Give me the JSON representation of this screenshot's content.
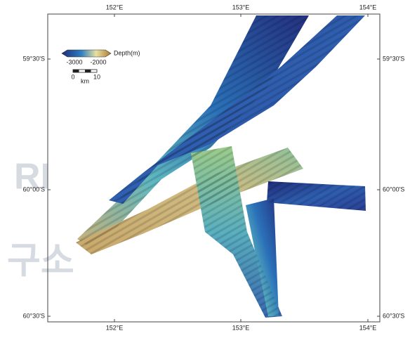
{
  "map": {
    "top_labels": [
      "152°E",
      "153°E",
      "154°E"
    ],
    "bottom_labels": [
      "152°E",
      "153°E",
      "154°E"
    ],
    "left_labels": [
      "59°30'S",
      "60°00'S",
      "60°30'S"
    ],
    "right_labels": [
      "59°30'S",
      "60°00'S",
      "60°30'S"
    ],
    "colorbar": {
      "label": "Depth(m)",
      "ticks": [
        "-3000",
        "-2000"
      ]
    },
    "scalebar": {
      "ticks": [
        "0",
        "10"
      ],
      "unit": "km"
    },
    "watermark": [
      "RI",
      "구소"
    ]
  }
}
